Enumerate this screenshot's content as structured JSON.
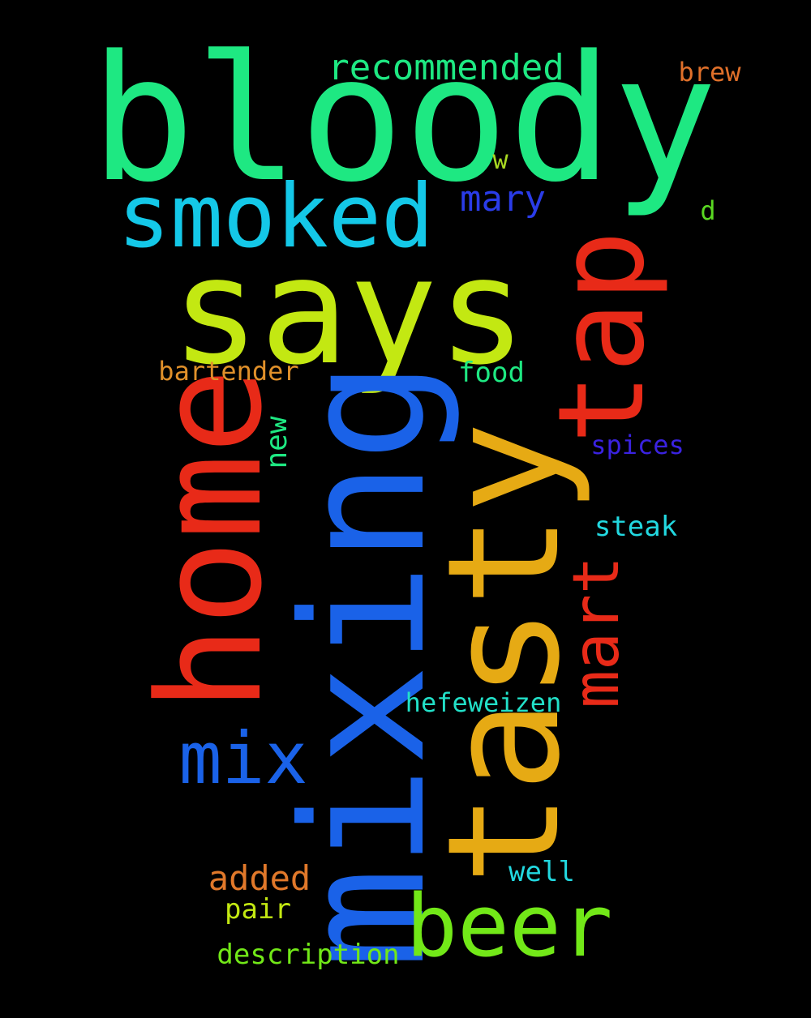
{
  "words": {
    "bloody": {
      "text": "bloody",
      "color": "#1ee882"
    },
    "says": {
      "text": "says",
      "color": "#c3e812"
    },
    "mixing": {
      "text": "mixing",
      "color": "#1a62e8"
    },
    "tasty": {
      "text": "tasty",
      "color": "#e6aa14"
    },
    "home": {
      "text": "home",
      "color": "#e82a18"
    },
    "tap": {
      "text": "tap",
      "color": "#e82a18"
    },
    "smoked": {
      "text": "smoked",
      "color": "#14c8e8"
    },
    "beer": {
      "text": "beer",
      "color": "#72e818"
    },
    "mix": {
      "text": "mix",
      "color": "#1a62e8"
    },
    "mart": {
      "text": "mart",
      "color": "#e82a18"
    },
    "mary": {
      "text": "mary",
      "color": "#2a3ce8"
    },
    "recommended": {
      "text": "recommended",
      "color": "#1ee882"
    },
    "added": {
      "text": "added",
      "color": "#e0782a"
    },
    "bartender": {
      "text": "bartender",
      "color": "#e0902a"
    },
    "food": {
      "text": "food",
      "color": "#1ee882"
    },
    "new": {
      "text": "new",
      "color": "#1ee882"
    },
    "spices": {
      "text": "spices",
      "color": "#3a22e0"
    },
    "steak": {
      "text": "steak",
      "color": "#22d8e0"
    },
    "hefeweizen": {
      "text": "hefeweizen",
      "color": "#22e0c8"
    },
    "well": {
      "text": "well",
      "color": "#22d8e0"
    },
    "pair": {
      "text": "pair",
      "color": "#c3e812"
    },
    "description": {
      "text": "description",
      "color": "#72e818"
    },
    "brew": {
      "text": "brew",
      "color": "#e0702a"
    },
    "w": {
      "text": "w",
      "color": "#a8d822"
    },
    "d": {
      "text": "d",
      "color": "#5ad822"
    }
  }
}
